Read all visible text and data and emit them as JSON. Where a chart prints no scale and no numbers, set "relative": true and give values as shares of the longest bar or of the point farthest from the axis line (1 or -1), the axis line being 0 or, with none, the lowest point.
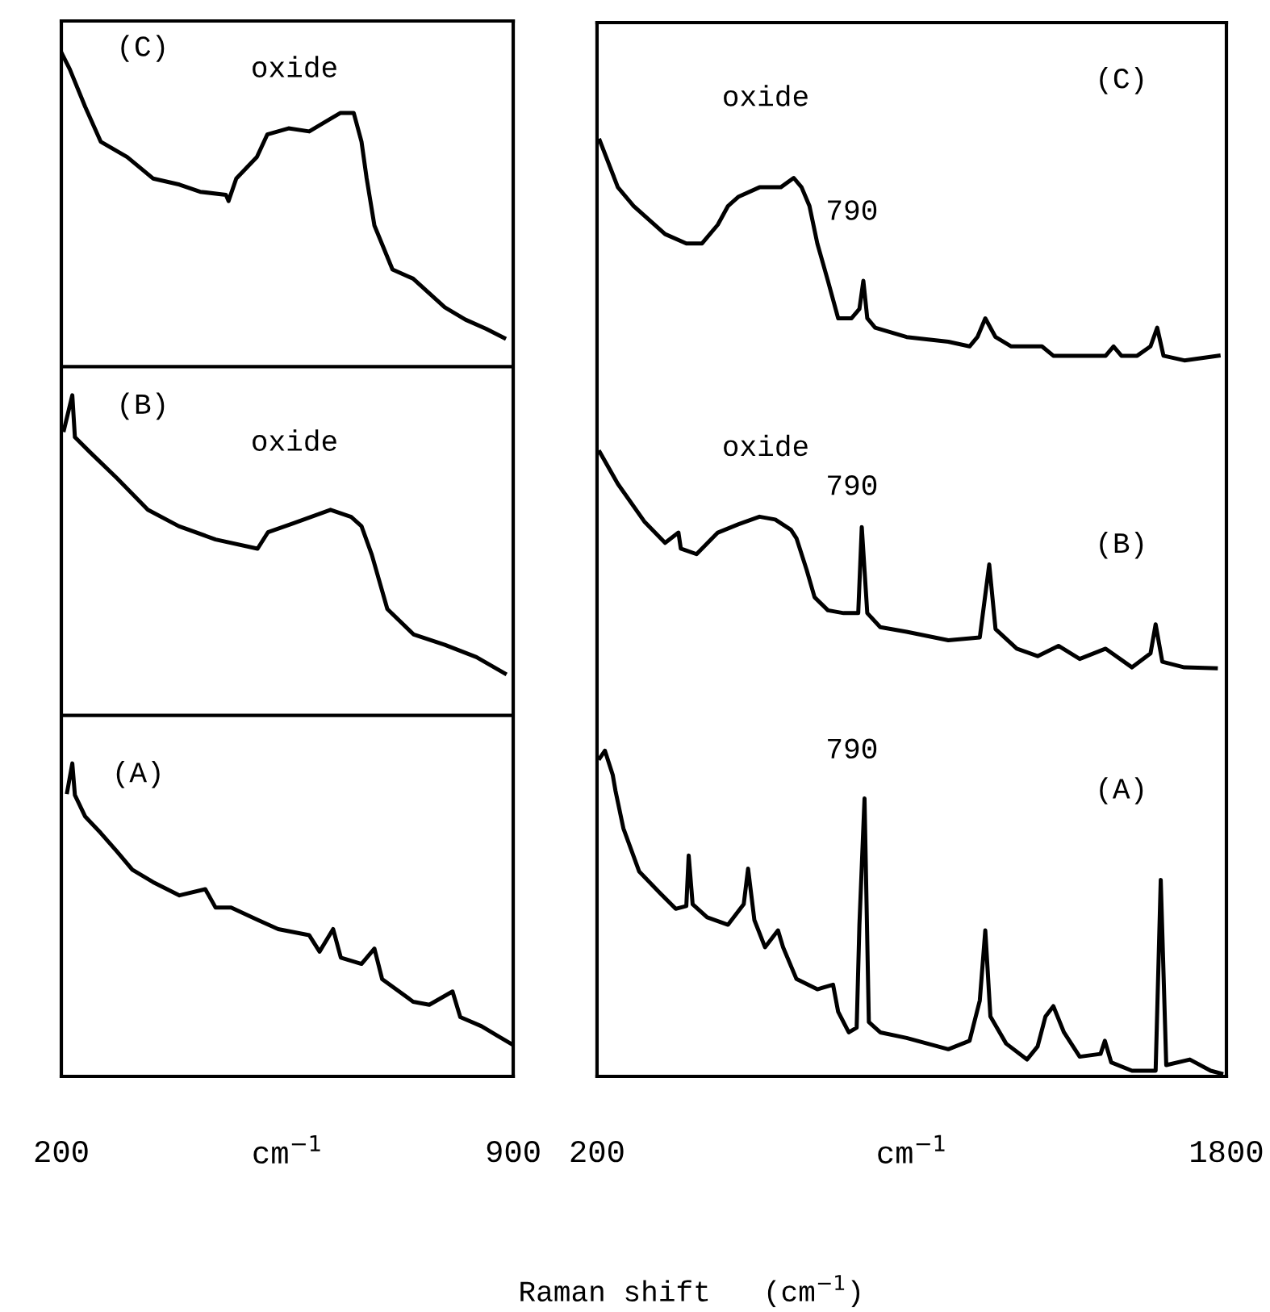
{
  "chart_data": [
    {
      "type": "line",
      "relative": true,
      "xlim": [
        200,
        900
      ],
      "xticks": [
        200,
        900
      ],
      "xlabel": "cm$^{−1}$",
      "annotations": [
        "(C)",
        "oxide",
        "(B)",
        "oxide",
        "(A)"
      ],
      "ref_lines": [
        {
          "axis": "y",
          "value": 0.694,
          "color": "#000000"
        },
        {
          "axis": "y",
          "value": 0.353,
          "color": "#000000"
        }
      ],
      "series": [
        {
          "color": "#000000",
          "x": [
            201,
            213,
            237,
            261,
            302,
            342,
            383,
            415,
            455,
            459,
            471,
            503,
            519,
            552,
            584,
            616,
            632,
            653,
            665,
            673,
            685,
            713,
            745,
            794,
            826,
            858,
            886
          ],
          "values": [
            1.0,
            0.985,
            0.948,
            0.914,
            0.899,
            0.878,
            0.872,
            0.865,
            0.862,
            0.856,
            0.878,
            0.899,
            0.921,
            0.927,
            0.924,
            0.936,
            0.942,
            0.942,
            0.914,
            0.878,
            0.832,
            0.789,
            0.78,
            0.752,
            0.74,
            0.731,
            0.722
          ]
        },
        {
          "color": "#000000",
          "x": [
            204,
            217,
            221,
            245,
            286,
            334,
            382,
            439,
            504,
            520,
            560,
            617,
            649,
            665,
            681,
            705,
            746,
            794,
            843,
            887
          ],
          "values": [
            0.632,
            0.666,
            0.625,
            0.61,
            0.585,
            0.554,
            0.538,
            0.525,
            0.516,
            0.532,
            0.541,
            0.554,
            0.547,
            0.538,
            0.51,
            0.457,
            0.432,
            0.422,
            0.41,
            0.394
          ]
        },
        {
          "color": "#000000",
          "x": [
            209,
            217,
            221,
            237,
            261,
            286,
            310,
            342,
            383,
            423,
            439,
            463,
            504,
            536,
            584,
            600,
            621,
            633,
            665,
            685,
            697,
            745,
            770,
            806,
            818,
            851,
            875,
            899
          ],
          "values": [
            0.278,
            0.306,
            0.275,
            0.254,
            0.238,
            0.22,
            0.202,
            0.19,
            0.177,
            0.183,
            0.165,
            0.165,
            0.153,
            0.144,
            0.138,
            0.122,
            0.144,
            0.116,
            0.11,
            0.125,
            0.095,
            0.073,
            0.07,
            0.083,
            0.058,
            0.049,
            0.04,
            0.031
          ]
        }
      ]
    },
    {
      "type": "line",
      "relative": true,
      "xlim": [
        200,
        1800
      ],
      "xticks": [
        200,
        1800
      ],
      "xlabel": "cm$^{−1}$",
      "annotations": [
        "oxide",
        "(C)",
        "790",
        "oxide",
        "790",
        "(B)",
        "790",
        "(A)",
        "Raman shift   (cm$^{−1}$)"
      ],
      "series": [
        {
          "color": "#000000",
          "x": [
            207,
            253,
            293,
            373,
            427,
            467,
            507,
            533,
            560,
            613,
            667,
            700,
            720,
            740,
            760,
            787,
            813,
            847,
            867,
            877,
            887,
            907,
            987,
            1093,
            1147,
            1167,
            1187,
            1213,
            1253,
            1331,
            1360,
            1427,
            1493,
            1513,
            1533,
            1573,
            1607,
            1624,
            1640,
            1693,
            1780
          ],
          "values": [
            1.0,
            0.95,
            0.93,
            0.9,
            0.89,
            0.89,
            0.91,
            0.93,
            0.94,
            0.95,
            0.95,
            0.96,
            0.95,
            0.93,
            0.89,
            0.85,
            0.81,
            0.81,
            0.82,
            0.85,
            0.81,
            0.8,
            0.79,
            0.785,
            0.78,
            0.79,
            0.81,
            0.79,
            0.78,
            0.78,
            0.77,
            0.77,
            0.77,
            0.78,
            0.77,
            0.77,
            0.78,
            0.8,
            0.77,
            0.765,
            0.77
          ]
        },
        {
          "color": "#000000",
          "x": [
            207,
            253,
            320,
            373,
            407,
            413,
            453,
            507,
            560,
            613,
            653,
            693,
            707,
            733,
            753,
            787,
            827,
            864,
            873,
            887,
            920,
            987,
            1093,
            1173,
            1197,
            1213,
            1267,
            1320,
            1373,
            1427,
            1493,
            1560,
            1607,
            1620,
            1637,
            1693,
            1773
          ],
          "values": [
            0.667,
            0.633,
            0.593,
            0.57,
            0.581,
            0.564,
            0.558,
            0.581,
            0.59,
            0.598,
            0.595,
            0.584,
            0.575,
            0.541,
            0.512,
            0.498,
            0.495,
            0.495,
            0.587,
            0.495,
            0.48,
            0.475,
            0.466,
            0.469,
            0.547,
            0.478,
            0.457,
            0.449,
            0.46,
            0.446,
            0.457,
            0.437,
            0.452,
            0.483,
            0.443,
            0.437,
            0.436
          ]
        },
        {
          "color": "#000000",
          "x": [
            207,
            220,
            240,
            247,
            267,
            307,
            360,
            400,
            427,
            433,
            443,
            480,
            533,
            573,
            584,
            600,
            627,
            660,
            673,
            707,
            760,
            800,
            813,
            840,
            860,
            867,
            880,
            891,
            920,
            987,
            1093,
            1147,
            1173,
            1187,
            1200,
            1240,
            1293,
            1320,
            1340,
            1360,
            1387,
            1427,
            1480,
            1491,
            1507,
            1560,
            1620,
            1633,
            1647,
            1707,
            1760,
            1787
          ],
          "values": [
            0.34,
            0.348,
            0.322,
            0.305,
            0.265,
            0.219,
            0.196,
            0.179,
            0.182,
            0.236,
            0.184,
            0.17,
            0.162,
            0.184,
            0.222,
            0.167,
            0.138,
            0.156,
            0.138,
            0.104,
            0.093,
            0.098,
            0.069,
            0.047,
            0.052,
            0.162,
            0.297,
            0.058,
            0.047,
            0.041,
            0.029,
            0.038,
            0.081,
            0.156,
            0.064,
            0.035,
            0.018,
            0.032,
            0.064,
            0.075,
            0.047,
            0.021,
            0.024,
            0.038,
            0.015,
            0.006,
            0.006,
            0.21,
            0.012,
            0.018,
            0.006,
            0.003
          ]
        }
      ]
    }
  ]
}
